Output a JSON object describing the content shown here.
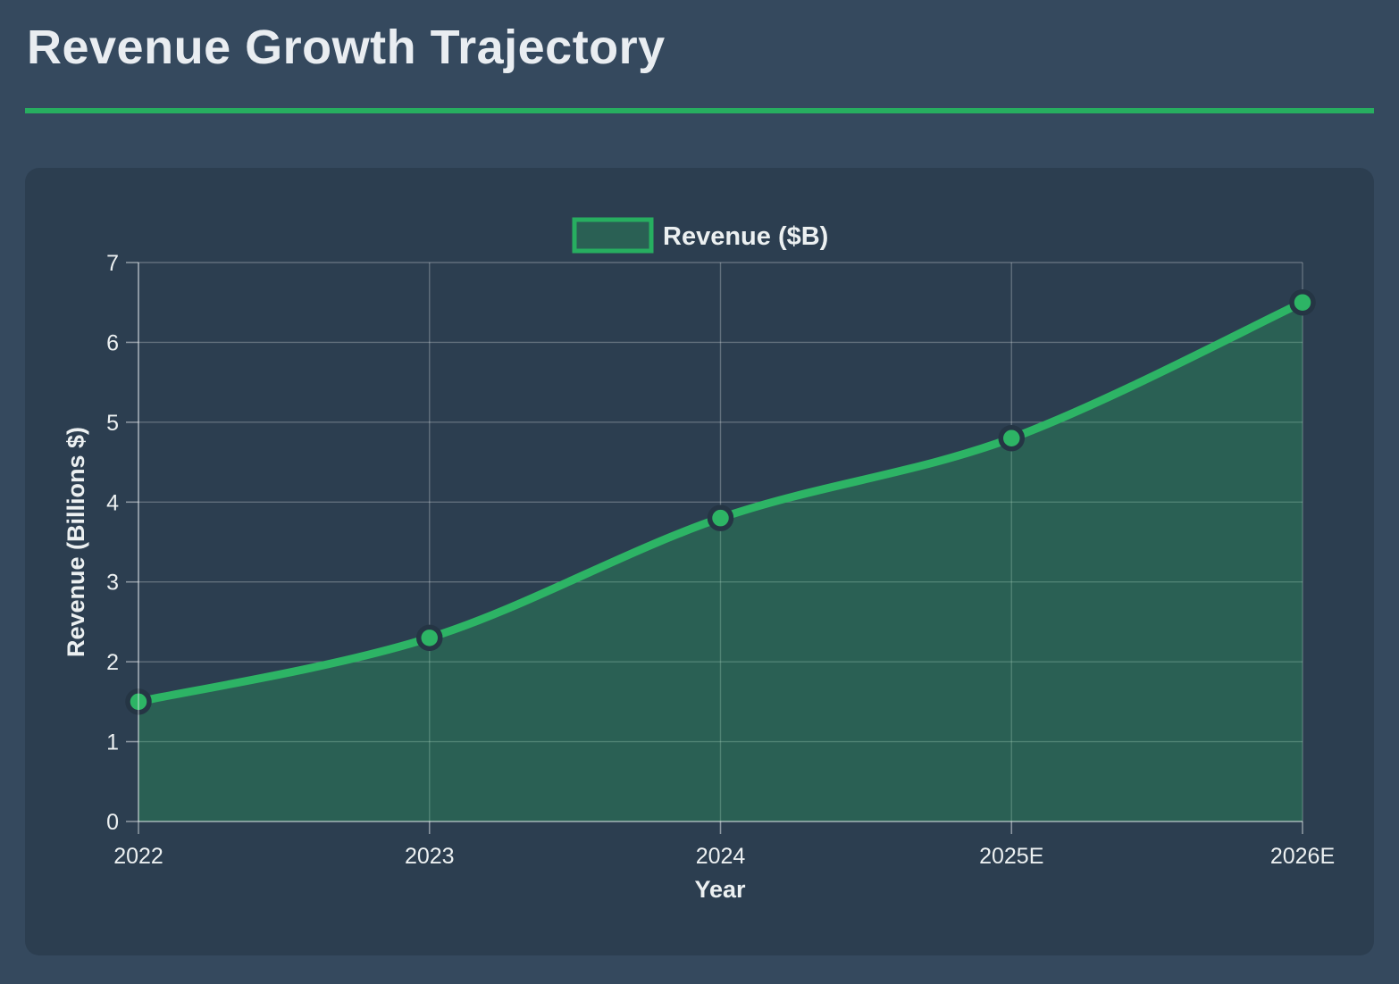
{
  "header": {
    "title": "Revenue Growth Trajectory"
  },
  "colors": {
    "accent_green": "#2db465",
    "rule_green": "#27ae60",
    "legend_border_green": "#27ae60",
    "area_fill": "rgba(39,174,96,0.30)",
    "panel_bg": "#2c3e50",
    "page_bg": "#35495e",
    "text": "#ecf0f1",
    "grid": "rgba(236,240,241,0.28)",
    "spine": "rgba(236,240,241,0.50)",
    "marker_edge": "#253544"
  },
  "chart_data": {
    "type": "area",
    "categories": [
      "2022",
      "2023",
      "2024",
      "2025E",
      "2026E"
    ],
    "values": [
      1.5,
      2.3,
      3.8,
      4.8,
      6.5
    ],
    "series_name": "Revenue ($B)",
    "title": "Revenue Growth Trajectory",
    "xlabel": "Year",
    "ylabel": "Revenue (Billions $)",
    "ylim": [
      0,
      7
    ],
    "yticks": [
      0,
      1,
      2,
      3,
      4,
      5,
      6,
      7
    ],
    "grid": true,
    "legend_position": "top-center",
    "line_smooth": true,
    "markers": true
  }
}
